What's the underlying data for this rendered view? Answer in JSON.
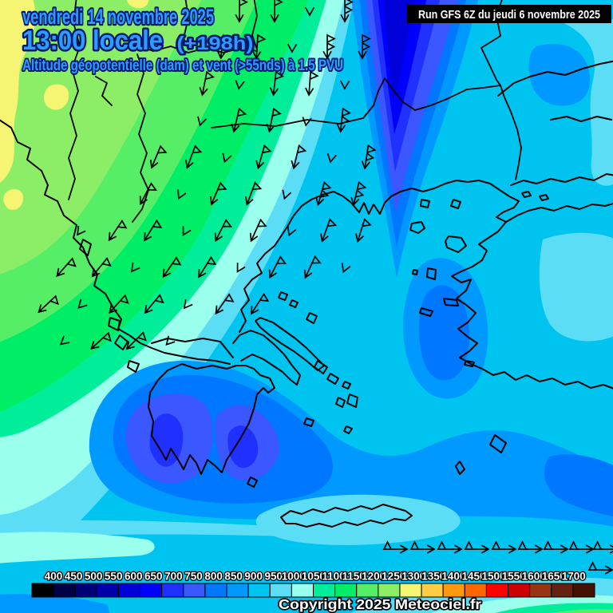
{
  "header": {
    "date_line": "vendredi 14 novembre 2025",
    "time_line": "13:00 locale",
    "forecast_offset": "(+198h)",
    "subtitle": "Altitude géopotentielle (dam) et vent (>55nds) à 1.5 PVU",
    "run_info": "Run GFS 6Z du jeudi 6 novembre 2025"
  },
  "footer": {
    "copyright": "Copyright 2025 Meteociel.fr"
  },
  "colors": {
    "title_text": "#2E9BFF",
    "title_outline": "#001A70",
    "run_box_bg": "#000000",
    "run_box_text": "#FFFFFF",
    "legend_label_text": "#FFFFFF",
    "legend_label_outline": "#000000",
    "coastline": "#000000",
    "wind_barb": "#000000"
  },
  "chart_data": {
    "type": "heatmap",
    "title": "Altitude géopotentielle (dam) et vent (>55nds) à 1.5 PVU",
    "model_run": "Run GFS 6Z du jeudi 6 novembre 2025",
    "valid_time": "vendredi 14 novembre 2025 13:00 locale (+198h)",
    "unit": "dam",
    "scale_values": [
      400,
      450,
      500,
      550,
      600,
      650,
      700,
      750,
      800,
      850,
      900,
      950,
      1000,
      1050,
      1100,
      1150,
      1200,
      1250,
      1300,
      1350,
      1400,
      1450,
      1500,
      1550,
      1600,
      1650,
      1700
    ],
    "scale_colors": [
      "#000000",
      "#000044",
      "#000078",
      "#0000AA",
      "#0000D8",
      "#0000FF",
      "#2030FF",
      "#3B57FF",
      "#0077FF",
      "#0099FF",
      "#00C4F0",
      "#5ADDF5",
      "#9BFFEE",
      "#00EE99",
      "#00EE66",
      "#55EE66",
      "#8CEE66",
      "#F5F573",
      "#FFCC44",
      "#FF9911",
      "#FF6600",
      "#FF0000",
      "#CC0000",
      "#993311",
      "#662211",
      "#441100"
    ],
    "legend_position": "bottom",
    "region": "southern Balkans, Greece, Aegean Sea and western Turkey",
    "features": [
      {
        "name": "upper-level trough",
        "location": "top centre-right over north Aegean",
        "min_value_dam": 600
      },
      {
        "name": "cut-off low",
        "location": "Ionian Sea south-west of Peloponnese",
        "min_value_dam": 700
      },
      {
        "name": "ridge of high geopotential",
        "location": "north-west corner",
        "max_value_dam": 1300
      },
      {
        "name": "secondary low band",
        "location": "south-east Aegean toward bottom-right corner",
        "min_value_dam": 800
      }
    ],
    "wind": {
      "symbol": "wind barbs with 50-kt pennants",
      "shown_for": "winds > 55 knots at the 1.5 PVU surface",
      "main_flow": "northerly over the Balkans veering south-westward, easterly row along the bottom edge"
    }
  }
}
